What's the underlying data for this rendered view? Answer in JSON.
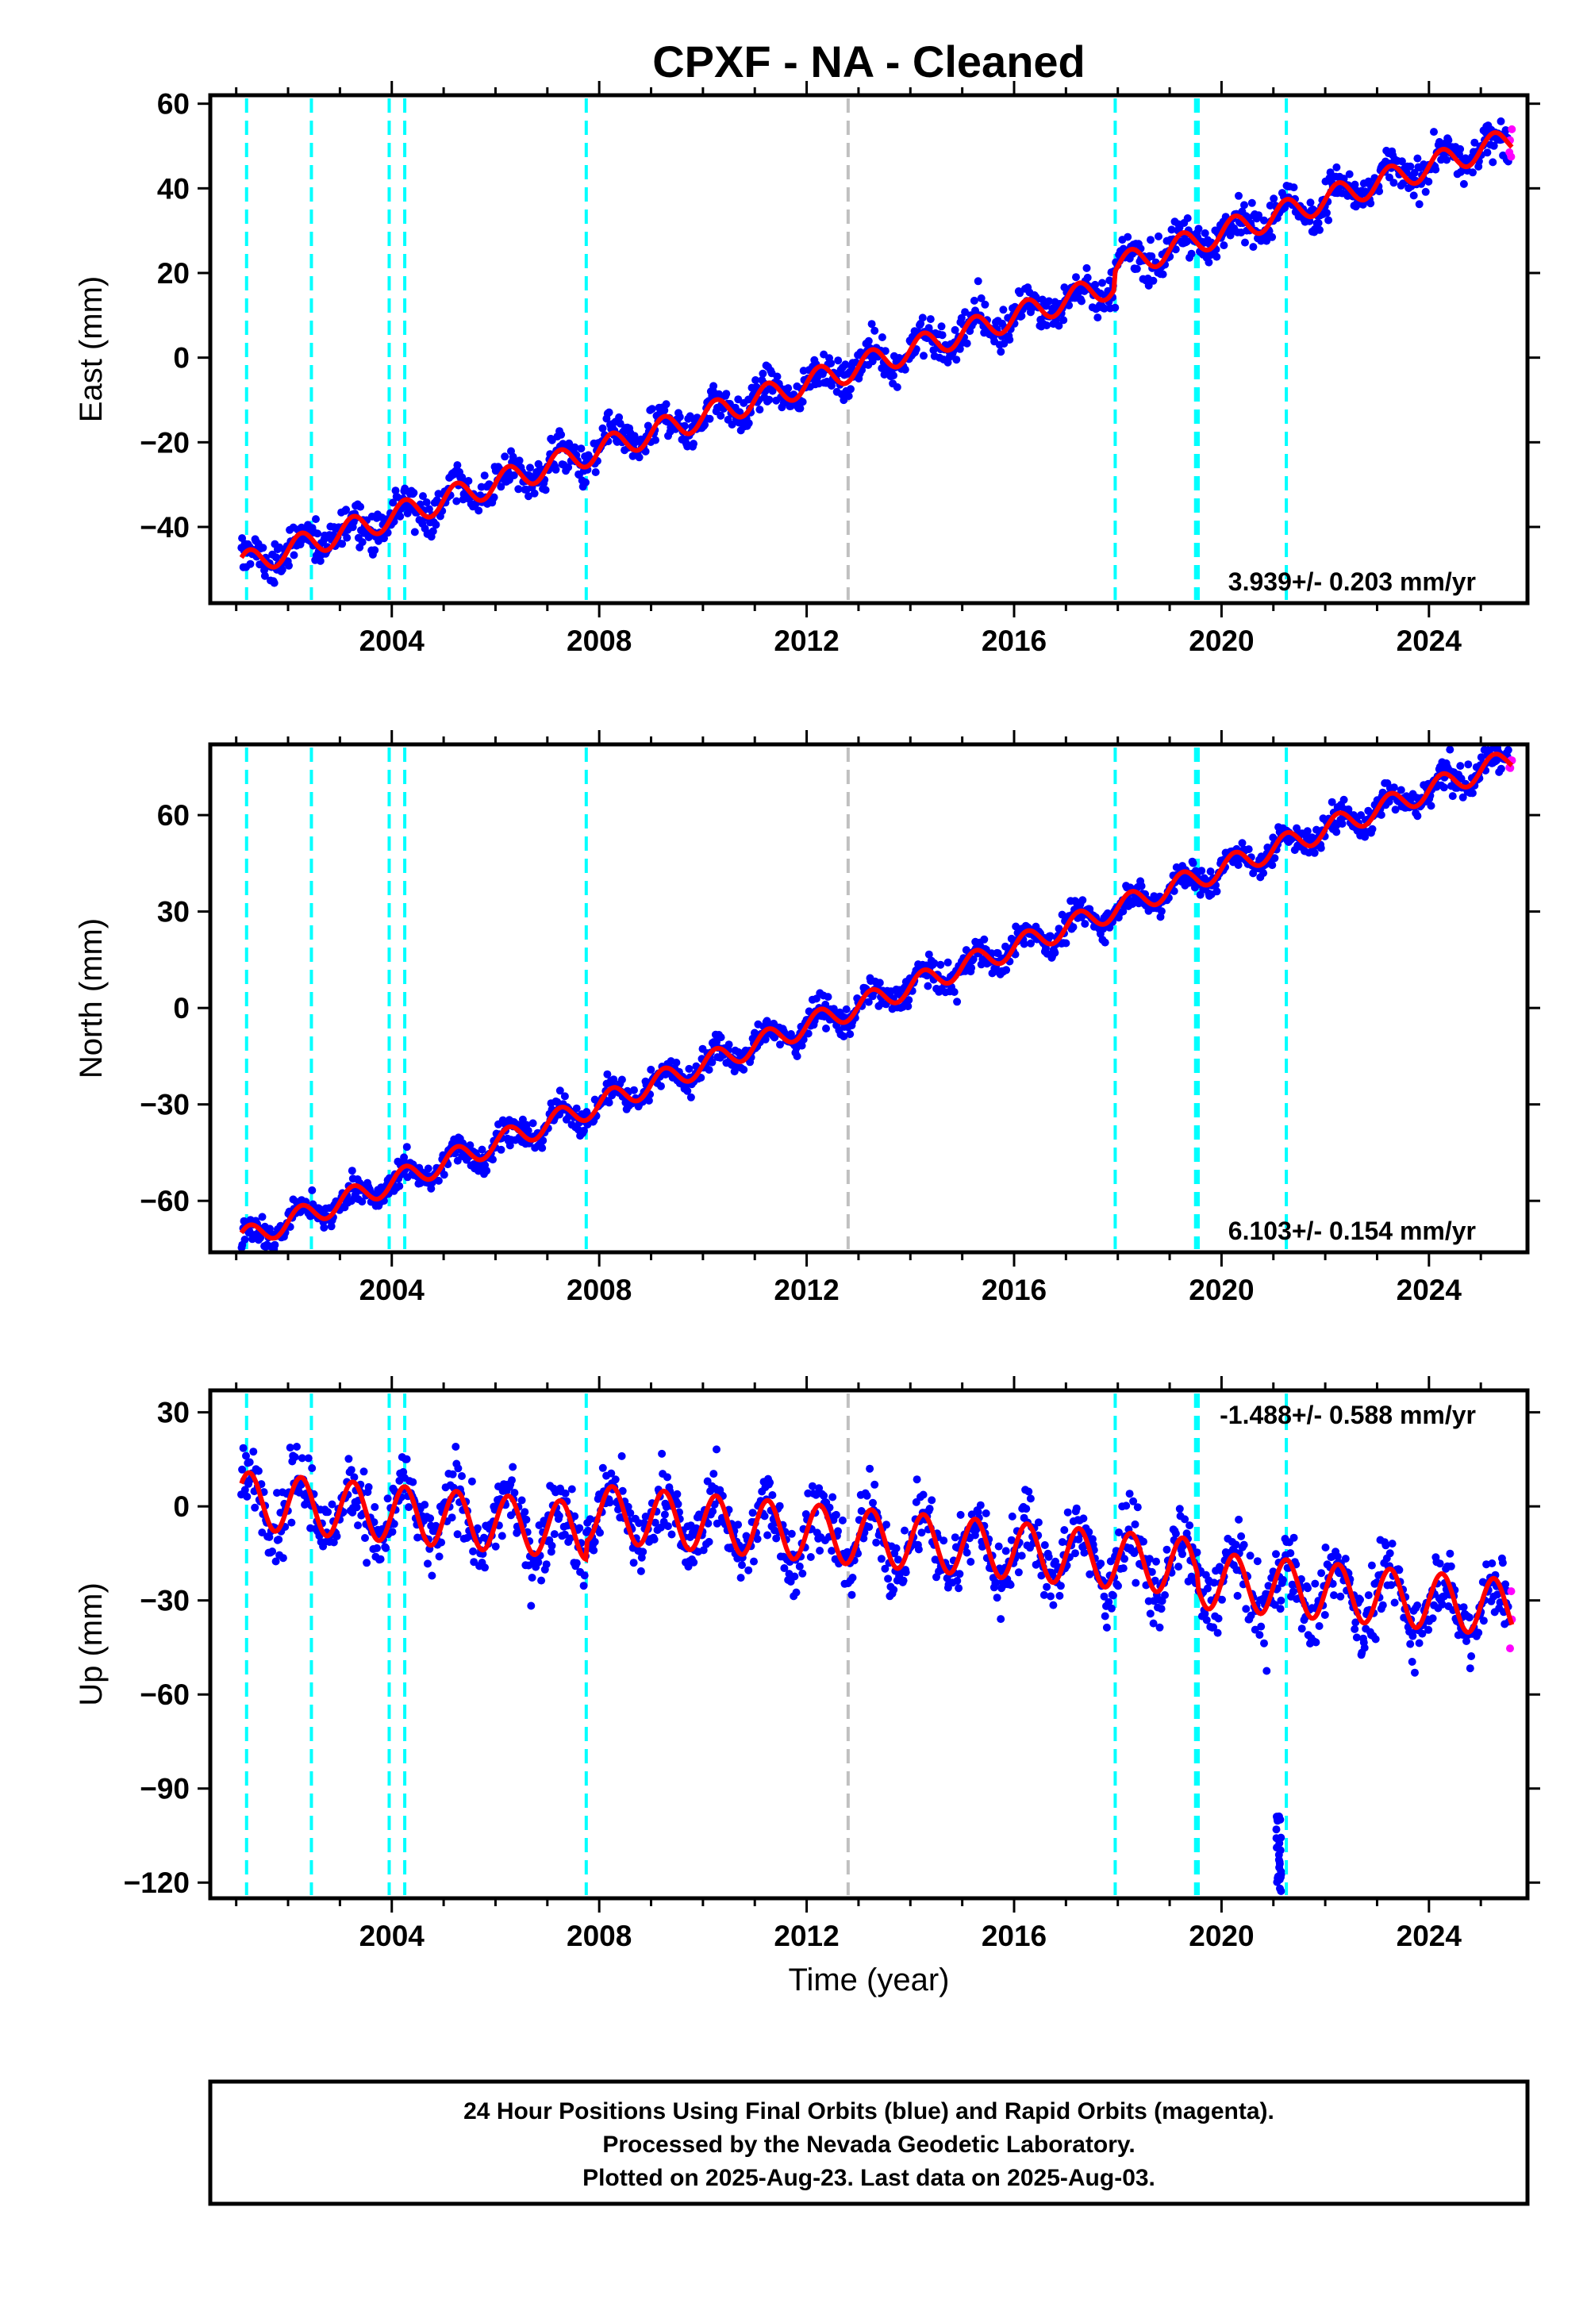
{
  "chart_data": {
    "title": "CPXF  - NA - Cleaned",
    "type": "scatter",
    "xlabel": "Time (year)",
    "xlim": [
      2000.5,
      2025.9
    ],
    "xticks": [
      2004,
      2008,
      2012,
      2016,
      2020,
      2024
    ],
    "colors": {
      "final_orbits": "#0000ff",
      "rapid_orbits": "#ff00ff",
      "model_fit": "#ff0000",
      "offset_cyan": "#00ffff",
      "offset_gray": "#c0c0c0"
    },
    "offset_lines": {
      "cyan": [
        2001.2,
        2002.45,
        2003.95,
        2004.25,
        2007.75,
        2017.95,
        2019.5,
        2019.55,
        2021.25
      ],
      "gray": [
        2012.8
      ]
    },
    "data_start": 2001.1,
    "data_end": 2025.6,
    "panels": [
      {
        "key": "east",
        "ylabel": "East (mm)",
        "ylim": [
          -58,
          62
        ],
        "yticks": [
          -40,
          -20,
          0,
          20,
          40,
          60
        ],
        "rate_text": "3.939+/- 0.203 mm/yr",
        "rate_position": "bottom-right",
        "trend": {
          "ref_year": 2001.1,
          "start_value": -49,
          "rate_mm_yr": 3.939
        },
        "seasonal_amplitude": 3.0,
        "steps": [
          {
            "year": 2017.95,
            "size": 4
          }
        ],
        "scatter": 2.2
      },
      {
        "key": "north",
        "ylabel": "North (mm)",
        "ylim": [
          -76,
          82
        ],
        "yticks": [
          -60,
          -30,
          0,
          30,
          60
        ],
        "rate_text": "6.103+/- 0.154 mm/yr",
        "rate_position": "bottom-right",
        "trend": {
          "ref_year": 2001.1,
          "start_value": -72,
          "rate_mm_yr": 6.103
        },
        "seasonal_amplitude": 3.5,
        "steps": [],
        "scatter": 2.2
      },
      {
        "key": "up",
        "ylabel": "Up (mm)",
        "ylim": [
          -125,
          37
        ],
        "yticks": [
          -120,
          -90,
          -60,
          -30,
          0,
          30
        ],
        "rate_text": "-1.488+/- 0.588 mm/yr",
        "rate_position": "top-right",
        "trend": {
          "ref_year": 2001.1,
          "start_value": 2,
          "rate_mm_yr": -1.488
        },
        "seasonal_amplitude": 9.0,
        "steps": [
          {
            "year": 2007.75,
            "size": 6
          },
          {
            "year": 2019.55,
            "size": -4
          }
        ],
        "scatter": 5.5,
        "outlier_cluster": {
          "x": [
            2021.05,
            2021.15
          ],
          "y": [
            -123,
            -98
          ]
        }
      }
    ]
  },
  "footer": {
    "line1": "24 Hour Positions Using Final Orbits (blue) and Rapid Orbits (magenta).",
    "line2": "Processed by the Nevada Geodetic Laboratory.",
    "line3": "Plotted on 2025-Aug-23. Last data on 2025-Aug-03."
  }
}
